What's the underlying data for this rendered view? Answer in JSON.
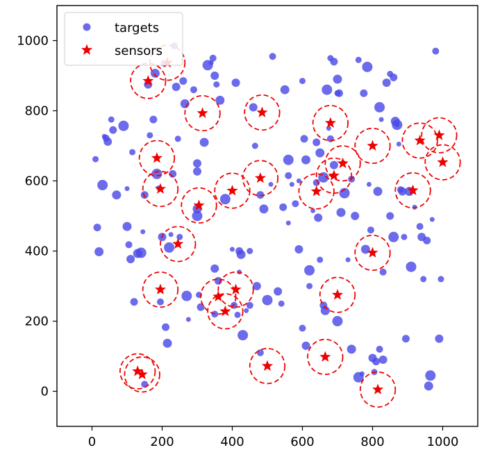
{
  "chart_data": {
    "type": "scatter",
    "title": "",
    "xlabel": "",
    "ylabel": "",
    "xlim": [
      -100,
      1100
    ],
    "ylim": [
      -100,
      1100
    ],
    "xticks": [
      0,
      200,
      400,
      600,
      800,
      1000
    ],
    "yticks": [
      0,
      200,
      400,
      600,
      800,
      1000
    ],
    "grid": false,
    "legend": {
      "placement": "top-left",
      "entries": [
        "targets",
        "sensors"
      ]
    },
    "colors": {
      "targets": "#4b4be6",
      "sensors": "#ee0000",
      "range_circle": "#ee0000"
    },
    "sensor_range_radius": 50,
    "series": [
      {
        "name": "targets",
        "marker": "circle",
        "points": [
          [
            10,
            662
          ],
          [
            15,
            467
          ],
          [
            20,
            398
          ],
          [
            30,
            588
          ],
          [
            35,
            727
          ],
          [
            40,
            722
          ],
          [
            45,
            712
          ],
          [
            55,
            775
          ],
          [
            60,
            745
          ],
          [
            70,
            560
          ],
          [
            90,
            757
          ],
          [
            100,
            578
          ],
          [
            105,
            418
          ],
          [
            110,
            377
          ],
          [
            115,
            682
          ],
          [
            120,
            255
          ],
          [
            130,
            393
          ],
          [
            140,
            395
          ],
          [
            145,
            455
          ],
          [
            150,
            20
          ],
          [
            160,
            875
          ],
          [
            165,
            730
          ],
          [
            175,
            775
          ],
          [
            180,
            907
          ],
          [
            185,
            620
          ],
          [
            190,
            580
          ],
          [
            195,
            255
          ],
          [
            200,
            440
          ],
          [
            205,
            935
          ],
          [
            210,
            183
          ],
          [
            215,
            137
          ],
          [
            220,
            410
          ],
          [
            225,
            447
          ],
          [
            235,
            985
          ],
          [
            240,
            868
          ],
          [
            245,
            720
          ],
          [
            260,
            885
          ],
          [
            265,
            820
          ],
          [
            270,
            272
          ],
          [
            275,
            205
          ],
          [
            290,
            860
          ],
          [
            300,
            627
          ],
          [
            305,
            275
          ],
          [
            310,
            240
          ],
          [
            320,
            710
          ],
          [
            330,
            930
          ],
          [
            340,
            937
          ],
          [
            345,
            950
          ],
          [
            350,
            900
          ],
          [
            355,
            875
          ],
          [
            360,
            315
          ],
          [
            365,
            830
          ],
          [
            380,
            548
          ],
          [
            400,
            405
          ],
          [
            405,
            245
          ],
          [
            410,
            880
          ],
          [
            415,
            218
          ],
          [
            420,
            400
          ],
          [
            425,
            390
          ],
          [
            430,
            160
          ],
          [
            440,
            230
          ],
          [
            450,
            245
          ],
          [
            460,
            810
          ],
          [
            465,
            700
          ],
          [
            480,
            560
          ],
          [
            490,
            520
          ],
          [
            500,
            260
          ],
          [
            510,
            590
          ],
          [
            515,
            955
          ],
          [
            530,
            285
          ],
          [
            540,
            250
          ],
          [
            545,
            525
          ],
          [
            550,
            860
          ],
          [
            560,
            660
          ],
          [
            570,
            590
          ],
          [
            580,
            535
          ],
          [
            590,
            405
          ],
          [
            600,
            885
          ],
          [
            605,
            720
          ],
          [
            610,
            660
          ],
          [
            620,
            345
          ],
          [
            630,
            515
          ],
          [
            640,
            595
          ],
          [
            645,
            495
          ],
          [
            650,
            375
          ],
          [
            660,
            245
          ],
          [
            665,
            230
          ],
          [
            670,
            860
          ],
          [
            675,
            750
          ],
          [
            680,
            720
          ],
          [
            690,
            645
          ],
          [
            700,
            850
          ],
          [
            705,
            850
          ],
          [
            710,
            510
          ],
          [
            720,
            565
          ],
          [
            730,
            375
          ],
          [
            740,
            605
          ],
          [
            750,
            500
          ],
          [
            760,
            945
          ],
          [
            775,
            850
          ],
          [
            780,
            405
          ],
          [
            785,
            925
          ],
          [
            790,
            590
          ],
          [
            795,
            460
          ],
          [
            800,
            95
          ],
          [
            805,
            55
          ],
          [
            810,
            85
          ],
          [
            815,
            570
          ],
          [
            820,
            810
          ],
          [
            825,
            775
          ],
          [
            830,
            340
          ],
          [
            840,
            880
          ],
          [
            850,
            905
          ],
          [
            860,
            895
          ],
          [
            865,
            770
          ],
          [
            870,
            760
          ],
          [
            875,
            705
          ],
          [
            880,
            575
          ],
          [
            885,
            570
          ],
          [
            890,
            440
          ],
          [
            895,
            150
          ],
          [
            905,
            570
          ],
          [
            910,
            355
          ],
          [
            920,
            525
          ],
          [
            935,
            470
          ],
          [
            940,
            440
          ],
          [
            945,
            320
          ],
          [
            955,
            430
          ],
          [
            960,
            15
          ],
          [
            965,
            45
          ],
          [
            970,
            490
          ],
          [
            980,
            970
          ],
          [
            990,
            150
          ],
          [
            995,
            320
          ],
          [
            850,
            500
          ],
          [
            740,
            120
          ],
          [
            700,
            200
          ],
          [
            560,
            480
          ],
          [
            480,
            110
          ],
          [
            350,
            350
          ],
          [
            250,
            440
          ],
          [
            150,
            560
          ],
          [
            100,
            470
          ],
          [
            760,
            40
          ],
          [
            770,
            50
          ],
          [
            820,
            120
          ],
          [
            830,
            90
          ],
          [
            680,
            950
          ],
          [
            690,
            940
          ],
          [
            700,
            890
          ],
          [
            860,
            440
          ],
          [
            870,
            760
          ],
          [
            600,
            180
          ],
          [
            610,
            130
          ],
          [
            620,
            300
          ],
          [
            640,
            710
          ],
          [
            650,
            680
          ],
          [
            660,
            610
          ],
          [
            590,
            600
          ],
          [
            560,
            615
          ],
          [
            470,
            300
          ],
          [
            450,
            400
          ],
          [
            230,
            620
          ],
          [
            300,
            520
          ],
          [
            300,
            500
          ],
          [
            420,
            340
          ],
          [
            350,
            220
          ],
          [
            300,
            650
          ]
        ]
      },
      {
        "name": "sensors",
        "marker": "star",
        "points": [
          [
            130,
            57
          ],
          [
            143,
            48
          ],
          [
            160,
            885
          ],
          [
            185,
            665
          ],
          [
            195,
            577
          ],
          [
            195,
            290
          ],
          [
            215,
            937
          ],
          [
            245,
            420
          ],
          [
            305,
            530
          ],
          [
            315,
            793
          ],
          [
            360,
            270
          ],
          [
            380,
            228
          ],
          [
            400,
            572
          ],
          [
            410,
            290
          ],
          [
            480,
            608
          ],
          [
            485,
            795
          ],
          [
            500,
            72
          ],
          [
            640,
            570
          ],
          [
            665,
            98
          ],
          [
            680,
            765
          ],
          [
            690,
            615
          ],
          [
            700,
            275
          ],
          [
            715,
            650
          ],
          [
            800,
            700
          ],
          [
            800,
            395
          ],
          [
            815,
            5
          ],
          [
            915,
            573
          ],
          [
            935,
            715
          ],
          [
            990,
            730
          ],
          [
            1000,
            653
          ]
        ]
      }
    ]
  }
}
